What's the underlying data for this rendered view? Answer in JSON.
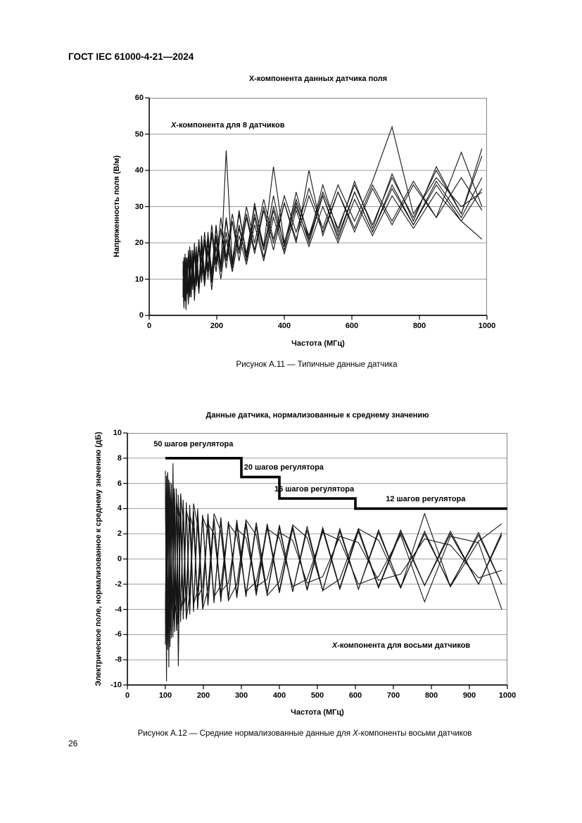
{
  "page": {
    "header": "ГОСТ IEC 61000-4-21—2024",
    "page_number": "26"
  },
  "chart_data": [
    {
      "id": "a11",
      "type": "line",
      "title": "Х-компонента данных датчика поля",
      "xlabel": "Частота (МГц)",
      "ylabel": "Напряженность поля (В/м)",
      "xlim": [
        0,
        1000
      ],
      "ylim": [
        0,
        60
      ],
      "xticks": [
        0,
        200,
        400,
        600,
        800,
        1000
      ],
      "yticks": [
        0,
        10,
        20,
        30,
        40,
        50,
        60
      ],
      "grid": "horizontal",
      "legend": "none",
      "annotation": {
        "x_italic": "Х",
        "rest": "-компонента для 8 датчиков"
      },
      "caption": "Рисунок А.11 — Типичные данные датчика",
      "x": [
        100,
        103,
        106,
        109,
        112,
        116,
        120,
        124,
        129,
        134,
        140,
        147,
        155,
        164,
        174,
        185,
        198,
        212,
        228,
        246,
        266,
        288,
        312,
        339,
        368,
        400,
        435,
        473,
        514,
        559,
        608,
        661,
        719,
        782,
        850,
        924,
        985
      ],
      "series": [
        [
          15,
          4,
          17,
          3,
          14,
          6,
          19,
          8,
          17,
          5,
          17,
          7,
          22,
          11,
          21,
          9,
          22,
          13,
          45.5,
          14,
          24,
          16,
          28,
          18,
          30,
          20,
          30,
          21,
          33,
          22,
          34,
          23,
          36,
          25,
          37,
          27,
          38
        ],
        [
          8,
          2,
          12,
          1.5,
          10,
          3,
          13,
          5,
          15,
          4,
          14,
          6,
          16,
          8,
          18,
          7,
          19,
          10,
          21,
          12,
          22,
          14,
          25,
          15,
          27,
          17,
          29,
          19,
          30,
          20,
          32,
          22,
          33,
          24,
          34,
          26,
          35
        ],
        [
          5,
          16,
          4,
          15,
          6,
          18,
          5,
          17,
          7,
          19,
          8,
          20,
          9,
          21,
          10,
          23,
          12,
          24,
          13,
          26,
          15,
          27,
          17,
          29,
          18,
          31,
          20,
          40,
          22,
          34,
          23,
          35,
          25,
          36,
          27,
          45,
          30
        ],
        [
          12,
          6,
          14,
          5,
          16,
          7,
          15,
          6,
          18,
          8,
          17,
          9,
          19,
          11,
          22,
          12,
          24,
          14,
          26,
          15,
          28,
          17,
          30,
          19,
          41,
          20,
          32,
          22,
          34,
          24,
          36,
          25,
          38,
          27,
          40,
          28,
          46
        ],
        [
          7,
          14,
          6,
          16,
          8,
          17,
          9,
          18,
          10,
          20,
          11,
          21,
          12,
          23,
          13,
          25,
          15,
          27,
          16,
          28,
          18,
          30,
          20,
          32,
          21,
          33,
          23,
          35,
          24,
          36,
          26,
          37,
          52,
          28,
          38,
          30,
          34
        ],
        [
          10,
          3,
          11,
          2,
          13,
          4,
          12,
          5,
          14,
          6,
          16,
          7,
          18,
          9,
          20,
          10,
          21,
          12,
          23,
          13,
          25,
          15,
          27,
          16,
          29,
          18,
          31,
          20,
          33,
          21,
          34,
          23,
          35,
          25,
          36,
          26,
          21
        ],
        [
          6,
          13,
          5,
          14,
          7,
          16,
          8,
          15,
          9,
          17,
          10,
          19,
          11,
          20,
          12,
          22,
          14,
          24,
          15,
          26,
          17,
          28,
          18,
          30,
          20,
          31,
          21,
          33,
          23,
          34,
          24,
          36,
          26,
          37,
          27,
          38,
          29
        ],
        [
          13,
          5,
          15,
          4,
          12,
          5,
          16,
          6,
          18,
          7,
          19,
          8,
          21,
          10,
          23,
          11,
          25,
          13,
          27,
          14,
          29,
          16,
          31,
          18,
          33,
          19,
          34,
          21,
          36,
          23,
          37,
          24,
          39,
          26,
          41,
          28,
          44
        ]
      ]
    },
    {
      "id": "a12",
      "type": "line",
      "title": "Данные датчика, нормализованные к среднему значению",
      "xlabel": "Частота (МГц)",
      "ylabel": "Электрическое поле, нормализованное к среднему значению (дБ)",
      "xlim": [
        0,
        1000
      ],
      "ylim": [
        -10,
        10
      ],
      "xticks": [
        0,
        100,
        200,
        300,
        400,
        500,
        600,
        700,
        800,
        900,
        1000
      ],
      "yticks": [
        -10,
        -8,
        -6,
        -4,
        -2,
        0,
        2,
        4,
        6,
        8,
        10
      ],
      "grid": "horizontal",
      "legend": "none",
      "tuner_steps_line": {
        "points": [
          [
            100,
            8
          ],
          [
            300,
            8
          ],
          [
            300,
            6.5
          ],
          [
            400,
            6.5
          ],
          [
            400,
            4.8
          ],
          [
            600,
            4.8
          ],
          [
            600,
            4
          ],
          [
            1000,
            4
          ]
        ]
      },
      "step_annotations": [
        "50 шагов регулятора",
        "20 шагов регулятора",
        "16 шагов регулятора",
        "12 шагов регулятора"
      ],
      "annotation": {
        "x_italic": "Х",
        "rest": "-компонента для восьми датчиков"
      },
      "caption": {
        "before": "Рисунок А.12 — Средние нормализованные данные для ",
        "x_italic": "Х",
        "after": "-компоненты восьми датчиков"
      },
      "x": [
        100,
        103,
        106,
        109,
        112,
        116,
        120,
        124,
        129,
        134,
        140,
        147,
        155,
        164,
        174,
        185,
        198,
        212,
        228,
        246,
        266,
        288,
        312,
        339,
        368,
        400,
        435,
        473,
        514,
        559,
        608,
        661,
        719,
        782,
        850,
        924,
        985
      ],
      "series": [
        [
          6.5,
          -9.7,
          5.8,
          -6.2,
          6.1,
          -5.5,
          7.6,
          -5.8,
          5.2,
          -4.9,
          4.8,
          -4.4,
          4.5,
          -4.1,
          3.8,
          -3.9,
          3.5,
          -3.4,
          3.2,
          -3,
          2.9,
          -2.8,
          3,
          -2.6,
          2.8,
          -2.5,
          2.6,
          -2.4,
          2.5,
          -2.3,
          2.4,
          -2.2,
          2.3,
          -2.1,
          2.2,
          -2,
          2.1
        ],
        [
          -6.8,
          5.9,
          -7.2,
          6.3,
          -5.9,
          6,
          -5.4,
          5.6,
          -5,
          5.1,
          -4.6,
          4.7,
          -4.2,
          4.3,
          -3.9,
          4,
          -3.6,
          3.6,
          -3.3,
          3.3,
          -3.1,
          3.1,
          -2.9,
          2.9,
          -2.7,
          2.7,
          -2.6,
          2.6,
          -2.5,
          2.4,
          -2.4,
          2.3,
          -2.3,
          2.2,
          -2.2,
          2.1,
          -2
        ],
        [
          5.5,
          -5,
          6.8,
          -8.6,
          5.4,
          -6.1,
          4.9,
          -5.2,
          5.6,
          -8.5,
          4.3,
          -4.6,
          4,
          -4.2,
          3.7,
          -3.8,
          3.4,
          -3.5,
          3.1,
          -3.2,
          2.9,
          -2.9,
          2.7,
          -2.7,
          2.5,
          -2.6,
          2.4,
          -2.4,
          2.3,
          -2.3,
          2.2,
          -2.2,
          2.1,
          -2.1,
          2,
          -2,
          1.9
        ],
        [
          -5.2,
          6.6,
          -6.4,
          5.7,
          -7,
          5.2,
          -6.2,
          4.8,
          -5.5,
          4.4,
          -5,
          4.1,
          -4.6,
          3.8,
          -4.2,
          3.5,
          -3.8,
          3.2,
          -3.5,
          3,
          -3.2,
          2.8,
          -3,
          2.6,
          -2.8,
          2.5,
          -2.6,
          2.3,
          -2.5,
          2.2,
          -2.4,
          2.1,
          -2.2,
          2,
          -2.1,
          1.9,
          -2
        ],
        [
          7,
          -6,
          6.3,
          -6.8,
          5.8,
          -6.3,
          5.3,
          -5.7,
          4.9,
          -5.2,
          4.5,
          -4.8,
          4.1,
          -4.4,
          3.8,
          -4,
          3.5,
          -3.7,
          3.2,
          -3.4,
          3,
          -3.1,
          2.8,
          -2.9,
          2.6,
          -2.7,
          2.5,
          -2.5,
          2.3,
          -2.4,
          2.2,
          -2.3,
          2.1,
          -2.1,
          2,
          -2,
          1.9
        ],
        [
          -6.2,
          -4.5,
          6.9,
          4.2,
          -6.6,
          -3.9,
          6.1,
          3.6,
          -5.7,
          -3.3,
          5.2,
          3,
          -4.8,
          -2.8,
          4.4,
          2.6,
          -4,
          -2.4,
          3.6,
          2.2,
          -3.3,
          -2,
          3.1,
          1.9,
          -2.9,
          -1.8,
          2.7,
          1.7,
          -2.5,
          -1.6,
          2.4,
          1.5,
          -2.3,
          3.6,
          -2.2,
          1.4,
          2.8
        ],
        [
          4.8,
          3.4,
          -5.9,
          -4.1,
          5.5,
          3.8,
          -5.1,
          -3.5,
          4.7,
          3.2,
          -4.3,
          -2.9,
          3.9,
          2.7,
          -3.6,
          -2.5,
          3.3,
          2.3,
          -3,
          -2.1,
          2.8,
          1.9,
          -2.6,
          -1.8,
          2.4,
          1.7,
          -2.2,
          -1.6,
          2.1,
          1.5,
          -2,
          -1.4,
          1.9,
          -3.4,
          1.8,
          1.3,
          -4
        ],
        [
          -4.4,
          5.2,
          4,
          -5.4,
          -3.7,
          4.9,
          3.5,
          -4.6,
          -3.2,
          4.2,
          2.9,
          -3.8,
          -2.7,
          3.5,
          2.4,
          -3.1,
          -2.2,
          2.8,
          2,
          -2.6,
          -1.9,
          2.4,
          1.7,
          -2.2,
          -1.6,
          2.1,
          1.5,
          -1.9,
          -1.4,
          1.8,
          1.3,
          -1.7,
          -1.2,
          1.6,
          1.1,
          -1.5,
          -0.9
        ]
      ]
    }
  ]
}
